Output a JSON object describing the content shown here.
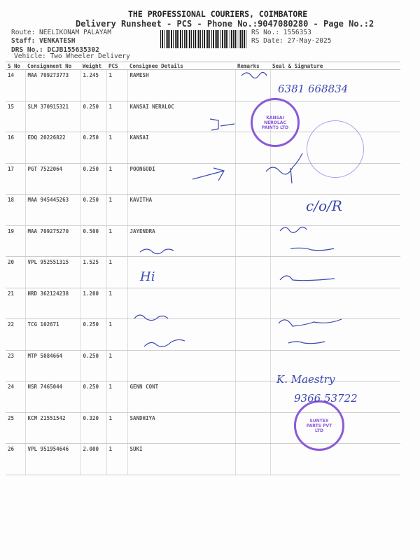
{
  "header": {
    "company": "THE PROFESSIONAL COURIERS, COIMBATORE",
    "subtitle": "Delivery Runsheet - PCS - Phone No.:9047080280 - Page No.:2",
    "route": "Route: NEELIKONAM PALAYAM",
    "staff": "Staff: VENKATESH",
    "drs": "DRS No.: DCJB155635302",
    "vehicle": "Vehicle: Two Wheeler Delivery",
    "rs_no": "RS No.: 1556353",
    "rs_date": "RS Date: 27-May-2025"
  },
  "table": {
    "columns": [
      "S No",
      "Consignment No",
      "Weight",
      "PCS",
      "Consignee Details",
      "Remarks",
      "Seal & Signature"
    ],
    "rows": [
      {
        "sno": "14",
        "cn": "MAA 709273773",
        "wt": "1.245",
        "pcs": "1",
        "consignee": "RAMESH"
      },
      {
        "sno": "15",
        "cn": "SLM 370915321",
        "wt": "0.250",
        "pcs": "1",
        "consignee": "KANSAI NERALOC"
      },
      {
        "sno": "16",
        "cn": "EDQ 20226822",
        "wt": "0.250",
        "pcs": "1",
        "consignee": "KANSAI"
      },
      {
        "sno": "17",
        "cn": "PGT 7522064",
        "wt": "0.250",
        "pcs": "1",
        "consignee": "POONGODI"
      },
      {
        "sno": "18",
        "cn": "MAA 945445263",
        "wt": "0.250",
        "pcs": "1",
        "consignee": "KAVITHA"
      },
      {
        "sno": "19",
        "cn": "MAA 709275270",
        "wt": "0.500",
        "pcs": "1",
        "consignee": "JAYENDRA"
      },
      {
        "sno": "20",
        "cn": "VPL 952551315",
        "wt": "1.525",
        "pcs": "1",
        "consignee": ""
      },
      {
        "sno": "21",
        "cn": "HRD 362124238",
        "wt": "1.200",
        "pcs": "1",
        "consignee": ""
      },
      {
        "sno": "22",
        "cn": "TCG 102671",
        "wt": "0.250",
        "pcs": "1",
        "consignee": ""
      },
      {
        "sno": "23",
        "cn": "MTP 5084664",
        "wt": "0.250",
        "pcs": "1",
        "consignee": ""
      },
      {
        "sno": "24",
        "cn": "HSR 7465044",
        "wt": "0.250",
        "pcs": "1",
        "consignee": "GENN CONT"
      },
      {
        "sno": "25",
        "cn": "KCM 21551542",
        "wt": "0.320",
        "pcs": "1",
        "consignee": "SANDHIYA"
      },
      {
        "sno": "26",
        "cn": "VPL 951954646",
        "wt": "2.000",
        "pcs": "1",
        "consignee": "SUKI"
      }
    ]
  },
  "handwriting": {
    "phone": "6381 668834",
    "hi": "Hi",
    "sig_18": "c/o/R",
    "sig_25": "K. Maestry",
    "phone_25": "9366 53722"
  },
  "stamps": {
    "stamp1": "KANSAI NEROLAC PAINTS LTD",
    "stamp2": "SUNTEX PARTS PVT LTD"
  },
  "colors": {
    "ink": "#3a46b0",
    "stamp": "#8a5ad8"
  }
}
